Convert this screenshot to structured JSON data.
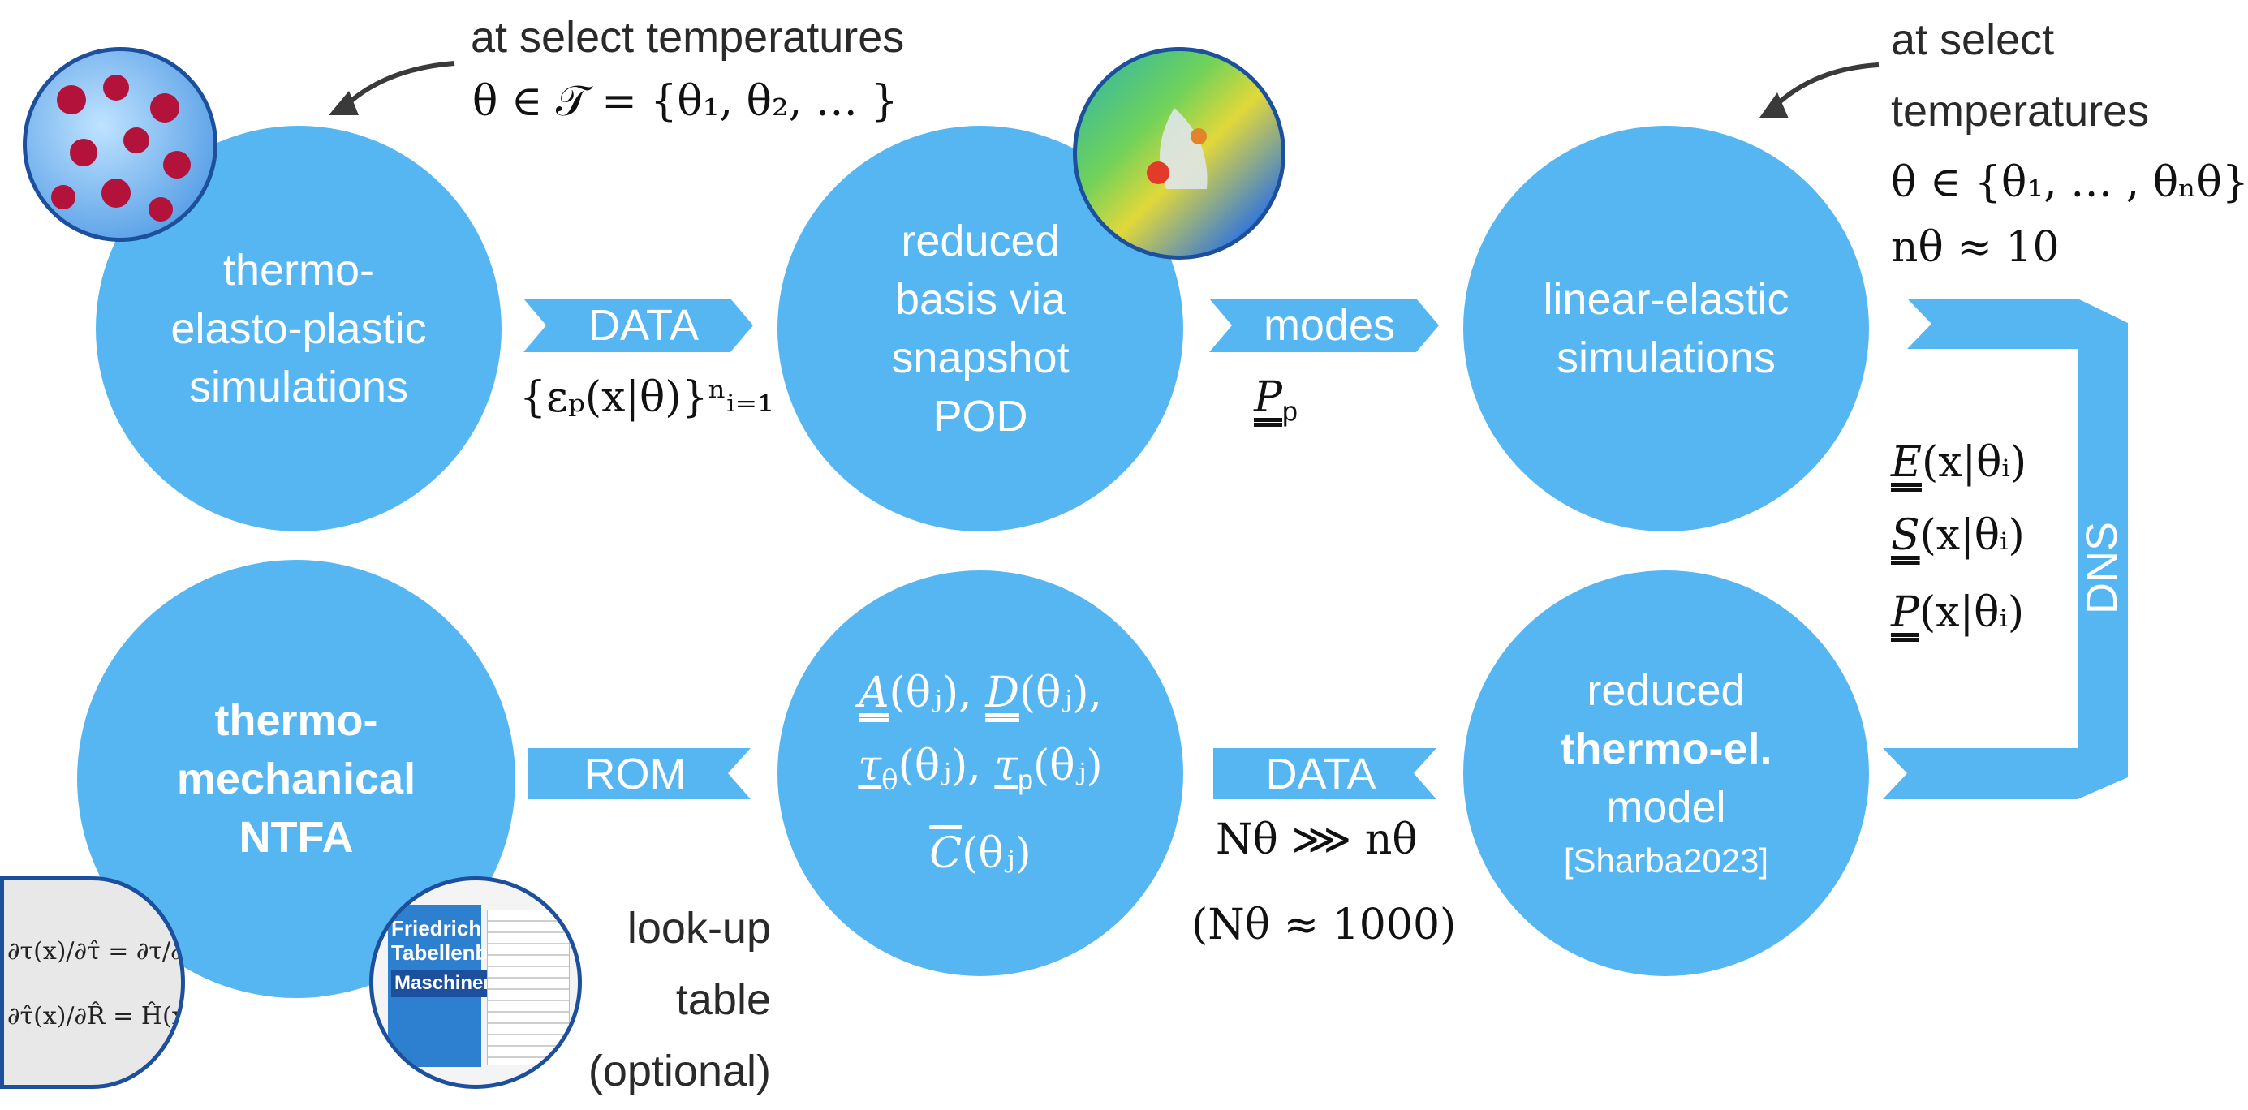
{
  "colors": {
    "accent": "#56b6f2",
    "ring": "#1c4f9c",
    "arrow": "#3a3a3a"
  },
  "top_left_note": {
    "line1": "at select temperatures",
    "line2": "θ ∈ 𝒯 = {θ₁, θ₂, … }"
  },
  "top_right_note": {
    "line1": "at select",
    "line2": "temperatures",
    "line3": "θ ∈ {θ₁, … , θₙθ}",
    "line4": "nθ ≈ 10"
  },
  "circles": {
    "thermo_elasto_plastic": {
      "l1": "thermo-",
      "l2": "elasto-plastic",
      "l3": "simulations"
    },
    "reduced_basis": {
      "l1": "reduced",
      "l2": "basis via",
      "l3": "snapshot",
      "l4": "POD"
    },
    "linear_elastic": {
      "l1": "linear-elastic",
      "l2": "simulations"
    },
    "reduced_model": {
      "l1": "reduced",
      "l2": "thermo-el.",
      "l3": "model",
      "l4": "[Sharba2023]"
    },
    "quantities": {
      "l1a": "A",
      "l1b": "(θⱼ), ",
      "l1c": "D",
      "l1d": "(θⱼ),",
      "l2a": "τ",
      "l2b": "θ",
      "l2c": "(θⱼ), ",
      "l2d": "τ",
      "l2e": "p",
      "l2f": "(θⱼ)",
      "l3a": "C",
      "l3b": "(θⱼ)"
    },
    "ntfa": {
      "l1": "thermo-",
      "l2": "mechanical",
      "l3": "NTFA"
    }
  },
  "arrows": {
    "data_top": "DATA",
    "modes": "modes",
    "dns": "DNS",
    "data_bottom": "DATA",
    "rom": "ROM"
  },
  "math_labels": {
    "snapshots": "{εₚ(x|θ)}ⁿᵢ₌₁",
    "modes_P": "P",
    "modes_sub": "p",
    "E": "E",
    "S": "S",
    "P": "P",
    "field_arg": "(x|θᵢ)",
    "N_large": "Nθ ⋙ nθ",
    "N_approx": "(Nθ ≈ 1000)"
  },
  "lookup": {
    "l1": "look-up",
    "l2": "table",
    "l3": "(optional)"
  },
  "thumb_formula": {
    "f1": "∂τ(x)/∂τ̂ = ∂τ/∂ξ̂ · ∂ξ̂/∂τ̂ = S",
    "f2": "∂τ̂(x)/∂R̂ = Ĥ(x)Q̂(x)"
  },
  "book": {
    "l1": "Friedrich",
    "l2": "Tabellenbuch",
    "l3": "Maschinenbau"
  }
}
